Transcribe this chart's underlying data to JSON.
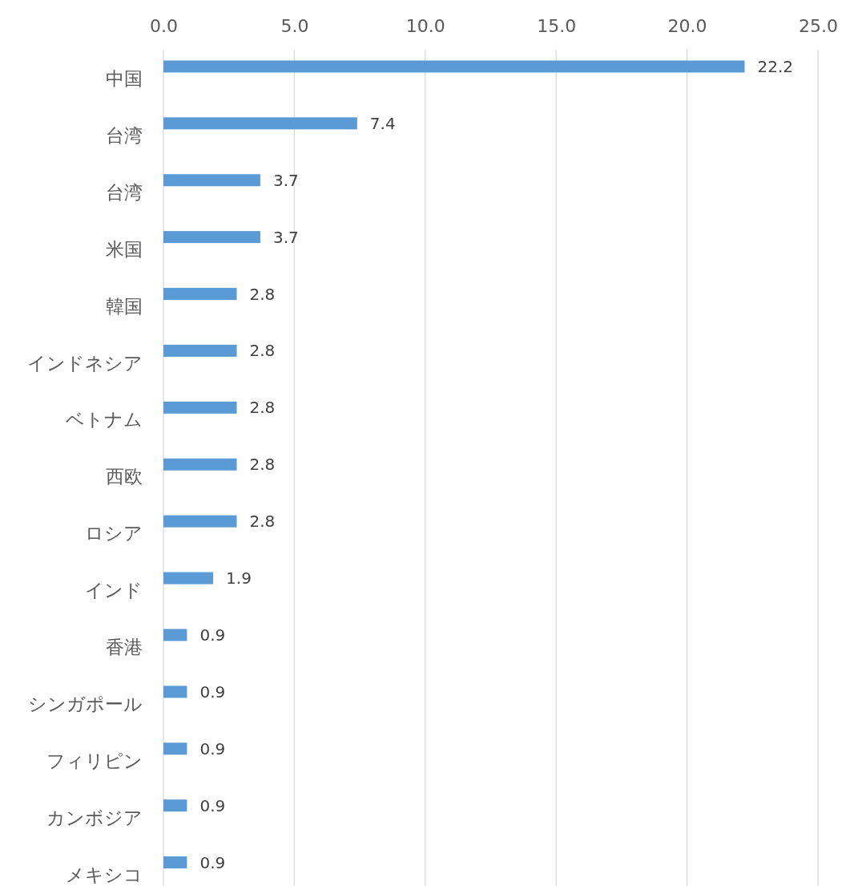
{
  "chart_data": {
    "type": "bar",
    "orientation": "horizontal",
    "categories": [
      "中国",
      "台湾",
      "台湾",
      "米国",
      "韓国",
      "インドネシア",
      "ベトナム",
      "西欧",
      "ロシア",
      "インド",
      "香港",
      "シンガポール",
      "フィリピン",
      "カンボジア",
      "メキシコ"
    ],
    "values": [
      22.2,
      7.4,
      3.7,
      3.7,
      2.8,
      2.8,
      2.8,
      2.8,
      2.8,
      1.9,
      0.9,
      0.9,
      0.9,
      0.9,
      0.9
    ],
    "color": "#5b9bd5",
    "xlim": [
      0,
      25
    ],
    "xticks": [
      {
        "value": 0,
        "label": "0.0"
      },
      {
        "value": 5,
        "label": "5.0"
      },
      {
        "value": 10,
        "label": "10.0"
      },
      {
        "value": 15,
        "label": "15.0"
      },
      {
        "value": 20,
        "label": "20.0"
      },
      {
        "value": 25,
        "label": "25.0"
      }
    ],
    "grid": "x",
    "data_labels": true
  }
}
